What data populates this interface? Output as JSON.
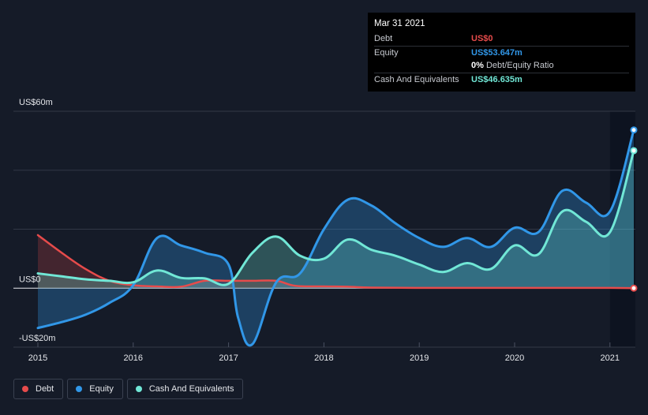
{
  "tooltip": {
    "date": "Mar 31 2021",
    "debt_label": "Debt",
    "debt_value": "US$0",
    "equity_label": "Equity",
    "equity_value": "US$53.647m",
    "ratio_value": "0%",
    "ratio_label": "Debt/Equity Ratio",
    "cash_label": "Cash And Equivalents",
    "cash_value": "US$46.635m"
  },
  "colors": {
    "debt": "#e64b4b",
    "equity": "#3197e8",
    "cash": "#71e7d6",
    "background": "#151b28"
  },
  "legend": [
    {
      "label": "Debt",
      "color": "#e64b4b"
    },
    {
      "label": "Equity",
      "color": "#3197e8"
    },
    {
      "label": "Cash And Equivalents",
      "color": "#71e7d6"
    }
  ],
  "chart_data": {
    "type": "area",
    "title": "",
    "xlabel": "",
    "ylabel": "",
    "xlim": [
      2015.0,
      2021.25
    ],
    "ylim": [
      -20,
      60
    ],
    "y_tick_labels": [
      {
        "value": 60,
        "label": "US$60m"
      },
      {
        "value": 0,
        "label": "US$0"
      },
      {
        "value": -20,
        "label": "-US$20m"
      }
    ],
    "gridlines": [
      60,
      40,
      20,
      0,
      -20
    ],
    "x_ticks": [
      {
        "value": 2015,
        "label": "2015"
      },
      {
        "value": 2016,
        "label": "2016"
      },
      {
        "value": 2017,
        "label": "2017"
      },
      {
        "value": 2018,
        "label": "2018"
      },
      {
        "value": 2019,
        "label": "2019"
      },
      {
        "value": 2020,
        "label": "2020"
      },
      {
        "value": 2021,
        "label": "2021"
      }
    ],
    "series": [
      {
        "name": "Debt",
        "key": "debt",
        "x": [
          2015.0,
          2015.25,
          2015.5,
          2015.75,
          2016.0,
          2016.25,
          2016.5,
          2016.75,
          2017.0,
          2017.25,
          2017.5,
          2017.7,
          2018.0,
          2018.25,
          2018.5,
          2019.0,
          2019.5,
          2020.0,
          2020.5,
          2021.0,
          2021.25
        ],
        "values": [
          18,
          12,
          6.5,
          2.5,
          1.0,
          0.6,
          0.5,
          2.5,
          2.5,
          2.5,
          2.5,
          0.8,
          0.6,
          0.5,
          0.2,
          0.1,
          0.1,
          0.1,
          0.1,
          0.1,
          0
        ]
      },
      {
        "name": "Equity",
        "key": "equity",
        "x": [
          2015.0,
          2015.25,
          2015.5,
          2015.75,
          2016.0,
          2016.25,
          2016.5,
          2016.75,
          2017.0,
          2017.1,
          2017.25,
          2017.5,
          2017.75,
          2018.0,
          2018.25,
          2018.5,
          2018.75,
          2019.0,
          2019.25,
          2019.5,
          2019.75,
          2020.0,
          2020.25,
          2020.5,
          2020.75,
          2021.0,
          2021.25
        ],
        "values": [
          -13.5,
          -11.5,
          -9,
          -5,
          1,
          17,
          14.5,
          12,
          8,
          -10,
          -19,
          2,
          5,
          20,
          30,
          28,
          22,
          17,
          14,
          17,
          14,
          20.5,
          19,
          33,
          29,
          26,
          53.647
        ]
      },
      {
        "name": "Cash And Equivalents",
        "key": "cash",
        "x": [
          2015.0,
          2015.25,
          2015.5,
          2015.75,
          2016.0,
          2016.25,
          2016.5,
          2016.75,
          2017.0,
          2017.25,
          2017.5,
          2017.75,
          2018.0,
          2018.25,
          2018.5,
          2018.75,
          2019.0,
          2019.25,
          2019.5,
          2019.75,
          2020.0,
          2020.25,
          2020.5,
          2020.75,
          2021.0,
          2021.25
        ],
        "values": [
          5,
          4,
          3,
          2.5,
          2,
          6,
          3.5,
          3.3,
          1.5,
          12,
          17.5,
          11,
          10,
          16.5,
          13,
          11,
          8,
          5.5,
          8.5,
          6.5,
          14.5,
          11.5,
          26,
          22.5,
          19,
          46.635
        ]
      }
    ]
  }
}
